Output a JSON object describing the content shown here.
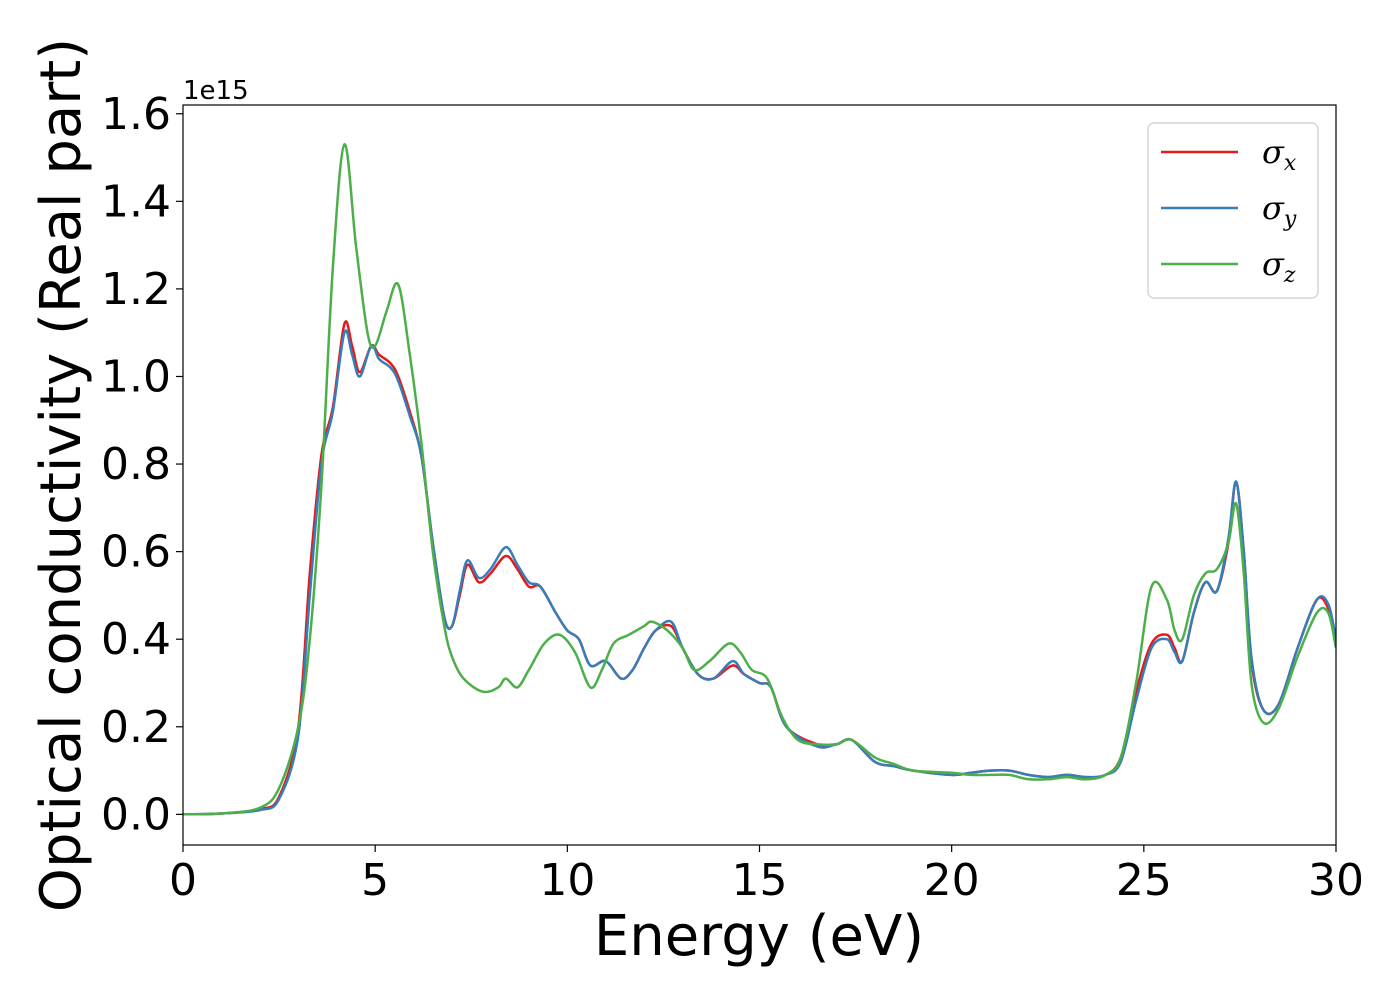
{
  "chart_data": {
    "type": "line",
    "xlabel": "Energy (eV)",
    "ylabel": "Optical conductivity (Real part)",
    "y_offset_label": "1e15",
    "xlim": [
      0,
      30
    ],
    "ylim": [
      -0.07,
      1.62
    ],
    "y_scale_factor": 1000000000000000.0,
    "xticks": [
      0,
      5,
      10,
      15,
      20,
      25,
      30
    ],
    "xtick_labels": [
      "0",
      "5",
      "10",
      "15",
      "20",
      "25",
      "30"
    ],
    "yticks": [
      0.0,
      0.2,
      0.4,
      0.6,
      0.8,
      1.0,
      1.2,
      1.4,
      1.6
    ],
    "ytick_labels": [
      "0.0",
      "0.2",
      "0.4",
      "0.6",
      "0.8",
      "1.0",
      "1.2",
      "1.4",
      "1.6"
    ],
    "grid": false,
    "legend_position": "top-right",
    "series": [
      {
        "name": "σx",
        "legend_symbol": "σ",
        "legend_sub": "x",
        "color": "#e41a1c",
        "points": [
          [
            0,
            0
          ],
          [
            1,
            0.002
          ],
          [
            2,
            0.012
          ],
          [
            2.5,
            0.04
          ],
          [
            3,
            0.2
          ],
          [
            3.3,
            0.55
          ],
          [
            3.6,
            0.82
          ],
          [
            3.9,
            0.93
          ],
          [
            4.2,
            1.12
          ],
          [
            4.4,
            1.07
          ],
          [
            4.6,
            1.01
          ],
          [
            4.9,
            1.07
          ],
          [
            5.1,
            1.05
          ],
          [
            5.4,
            1.03
          ],
          [
            5.6,
            1.0
          ],
          [
            5.9,
            0.92
          ],
          [
            6.2,
            0.82
          ],
          [
            6.5,
            0.62
          ],
          [
            6.8,
            0.45
          ],
          [
            7.0,
            0.43
          ],
          [
            7.2,
            0.5
          ],
          [
            7.4,
            0.57
          ],
          [
            7.7,
            0.53
          ],
          [
            8.0,
            0.55
          ],
          [
            8.4,
            0.59
          ],
          [
            8.7,
            0.56
          ],
          [
            9.0,
            0.52
          ],
          [
            9.3,
            0.52
          ],
          [
            9.7,
            0.46
          ],
          [
            10.0,
            0.42
          ],
          [
            10.3,
            0.4
          ],
          [
            10.6,
            0.34
          ],
          [
            11.0,
            0.35
          ],
          [
            11.4,
            0.31
          ],
          [
            11.7,
            0.33
          ],
          [
            12.0,
            0.38
          ],
          [
            12.3,
            0.42
          ],
          [
            12.7,
            0.43
          ],
          [
            13.0,
            0.38
          ],
          [
            13.4,
            0.32
          ],
          [
            13.8,
            0.31
          ],
          [
            14.3,
            0.34
          ],
          [
            14.6,
            0.32
          ],
          [
            15.0,
            0.3
          ],
          [
            15.3,
            0.29
          ],
          [
            15.7,
            0.2
          ],
          [
            16.5,
            0.16
          ],
          [
            17.0,
            0.16
          ],
          [
            17.4,
            0.17
          ],
          [
            18.0,
            0.12
          ],
          [
            18.5,
            0.11
          ],
          [
            19.0,
            0.1
          ],
          [
            20.0,
            0.09
          ],
          [
            20.5,
            0.095
          ],
          [
            21.0,
            0.1
          ],
          [
            21.5,
            0.1
          ],
          [
            22.0,
            0.09
          ],
          [
            22.5,
            0.085
          ],
          [
            23.0,
            0.09
          ],
          [
            23.5,
            0.085
          ],
          [
            24.0,
            0.09
          ],
          [
            24.4,
            0.13
          ],
          [
            24.8,
            0.28
          ],
          [
            25.2,
            0.39
          ],
          [
            25.6,
            0.41
          ],
          [
            25.8,
            0.38
          ],
          [
            26.0,
            0.35
          ],
          [
            26.3,
            0.46
          ],
          [
            26.6,
            0.53
          ],
          [
            26.9,
            0.51
          ],
          [
            27.2,
            0.62
          ],
          [
            27.4,
            0.76
          ],
          [
            27.6,
            0.6
          ],
          [
            27.8,
            0.35
          ],
          [
            28.1,
            0.24
          ],
          [
            28.5,
            0.25
          ],
          [
            29.0,
            0.38
          ],
          [
            29.5,
            0.49
          ],
          [
            29.8,
            0.47
          ],
          [
            30.0,
            0.4
          ]
        ]
      },
      {
        "name": "σy",
        "legend_symbol": "σ",
        "legend_sub": "y",
        "color": "#377eb8",
        "points": [
          [
            0,
            0
          ],
          [
            1,
            0.002
          ],
          [
            2,
            0.01
          ],
          [
            2.5,
            0.035
          ],
          [
            3,
            0.18
          ],
          [
            3.3,
            0.5
          ],
          [
            3.6,
            0.8
          ],
          [
            3.9,
            0.92
          ],
          [
            4.2,
            1.1
          ],
          [
            4.4,
            1.05
          ],
          [
            4.6,
            1.0
          ],
          [
            4.9,
            1.07
          ],
          [
            5.1,
            1.04
          ],
          [
            5.4,
            1.02
          ],
          [
            5.6,
            0.99
          ],
          [
            5.9,
            0.91
          ],
          [
            6.2,
            0.82
          ],
          [
            6.5,
            0.62
          ],
          [
            6.8,
            0.45
          ],
          [
            7.0,
            0.43
          ],
          [
            7.2,
            0.51
          ],
          [
            7.4,
            0.58
          ],
          [
            7.7,
            0.54
          ],
          [
            8.0,
            0.56
          ],
          [
            8.4,
            0.61
          ],
          [
            8.7,
            0.57
          ],
          [
            9.0,
            0.53
          ],
          [
            9.3,
            0.52
          ],
          [
            9.7,
            0.46
          ],
          [
            10.0,
            0.42
          ],
          [
            10.3,
            0.4
          ],
          [
            10.6,
            0.34
          ],
          [
            11.0,
            0.35
          ],
          [
            11.4,
            0.31
          ],
          [
            11.7,
            0.33
          ],
          [
            12.0,
            0.38
          ],
          [
            12.3,
            0.42
          ],
          [
            12.7,
            0.44
          ],
          [
            13.0,
            0.38
          ],
          [
            13.4,
            0.32
          ],
          [
            13.8,
            0.31
          ],
          [
            14.3,
            0.35
          ],
          [
            14.6,
            0.32
          ],
          [
            15.0,
            0.3
          ],
          [
            15.3,
            0.29
          ],
          [
            15.7,
            0.2
          ],
          [
            16.5,
            0.155
          ],
          [
            17.0,
            0.16
          ],
          [
            17.4,
            0.17
          ],
          [
            18.0,
            0.12
          ],
          [
            18.5,
            0.11
          ],
          [
            19.0,
            0.1
          ],
          [
            20.0,
            0.09
          ],
          [
            20.5,
            0.095
          ],
          [
            21.0,
            0.1
          ],
          [
            21.5,
            0.1
          ],
          [
            22.0,
            0.09
          ],
          [
            22.5,
            0.085
          ],
          [
            23.0,
            0.09
          ],
          [
            23.5,
            0.085
          ],
          [
            24.0,
            0.09
          ],
          [
            24.4,
            0.12
          ],
          [
            24.8,
            0.26
          ],
          [
            25.2,
            0.38
          ],
          [
            25.6,
            0.4
          ],
          [
            25.8,
            0.37
          ],
          [
            26.0,
            0.35
          ],
          [
            26.3,
            0.46
          ],
          [
            26.6,
            0.53
          ],
          [
            26.9,
            0.51
          ],
          [
            27.2,
            0.63
          ],
          [
            27.4,
            0.76
          ],
          [
            27.6,
            0.6
          ],
          [
            27.8,
            0.36
          ],
          [
            28.1,
            0.24
          ],
          [
            28.5,
            0.25
          ],
          [
            29.0,
            0.38
          ],
          [
            29.5,
            0.49
          ],
          [
            29.8,
            0.48
          ],
          [
            30.0,
            0.4
          ]
        ]
      },
      {
        "name": "σz",
        "legend_symbol": "σ",
        "legend_sub": "z",
        "color": "#4daf4a",
        "points": [
          [
            0,
            0
          ],
          [
            1,
            0.002
          ],
          [
            2,
            0.015
          ],
          [
            2.5,
            0.06
          ],
          [
            3,
            0.2
          ],
          [
            3.3,
            0.4
          ],
          [
            3.6,
            0.75
          ],
          [
            3.9,
            1.25
          ],
          [
            4.2,
            1.53
          ],
          [
            4.5,
            1.3
          ],
          [
            4.8,
            1.1
          ],
          [
            5.0,
            1.07
          ],
          [
            5.3,
            1.15
          ],
          [
            5.6,
            1.21
          ],
          [
            5.9,
            1.05
          ],
          [
            6.2,
            0.85
          ],
          [
            6.5,
            0.6
          ],
          [
            6.8,
            0.43
          ],
          [
            7.0,
            0.36
          ],
          [
            7.3,
            0.31
          ],
          [
            7.8,
            0.28
          ],
          [
            8.2,
            0.29
          ],
          [
            8.4,
            0.31
          ],
          [
            8.7,
            0.29
          ],
          [
            9.0,
            0.33
          ],
          [
            9.4,
            0.39
          ],
          [
            9.8,
            0.41
          ],
          [
            10.2,
            0.37
          ],
          [
            10.6,
            0.29
          ],
          [
            10.9,
            0.33
          ],
          [
            11.2,
            0.39
          ],
          [
            11.6,
            0.41
          ],
          [
            12.0,
            0.43
          ],
          [
            12.2,
            0.44
          ],
          [
            12.6,
            0.42
          ],
          [
            13.0,
            0.38
          ],
          [
            13.3,
            0.33
          ],
          [
            13.7,
            0.35
          ],
          [
            14.2,
            0.39
          ],
          [
            14.5,
            0.37
          ],
          [
            14.8,
            0.33
          ],
          [
            15.2,
            0.31
          ],
          [
            15.6,
            0.22
          ],
          [
            16.0,
            0.17
          ],
          [
            16.5,
            0.16
          ],
          [
            17.0,
            0.16
          ],
          [
            17.4,
            0.17
          ],
          [
            18.0,
            0.13
          ],
          [
            18.5,
            0.115
          ],
          [
            19.0,
            0.1
          ],
          [
            20.0,
            0.095
          ],
          [
            20.5,
            0.09
          ],
          [
            21.0,
            0.09
          ],
          [
            21.5,
            0.09
          ],
          [
            22.0,
            0.08
          ],
          [
            22.5,
            0.08
          ],
          [
            23.0,
            0.085
          ],
          [
            23.5,
            0.08
          ],
          [
            24.0,
            0.09
          ],
          [
            24.4,
            0.13
          ],
          [
            24.8,
            0.3
          ],
          [
            25.2,
            0.52
          ],
          [
            25.6,
            0.49
          ],
          [
            25.8,
            0.42
          ],
          [
            26.0,
            0.4
          ],
          [
            26.3,
            0.5
          ],
          [
            26.6,
            0.55
          ],
          [
            26.9,
            0.56
          ],
          [
            27.2,
            0.62
          ],
          [
            27.4,
            0.71
          ],
          [
            27.6,
            0.55
          ],
          [
            27.8,
            0.3
          ],
          [
            28.1,
            0.21
          ],
          [
            28.5,
            0.24
          ],
          [
            29.0,
            0.36
          ],
          [
            29.5,
            0.46
          ],
          [
            29.8,
            0.46
          ],
          [
            30.0,
            0.38
          ]
        ]
      }
    ]
  }
}
